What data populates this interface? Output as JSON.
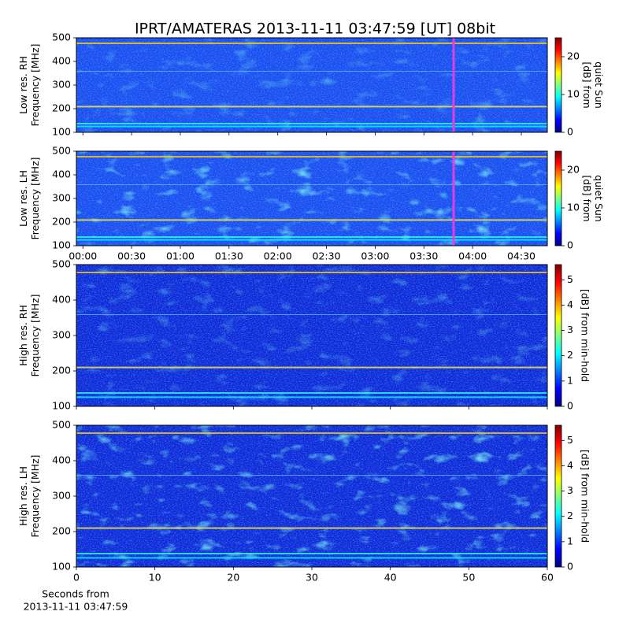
{
  "title": "IPRT/AMATERAS 2013-11-11 03:47:59 [UT]   08bit",
  "chart_data": [
    {
      "type": "heatmap",
      "ylabel": [
        "Low res. RH",
        "Frequency [MHz]"
      ],
      "xlim": [
        -4,
        286
      ],
      "xticks": [
        0,
        30,
        60,
        90,
        120,
        150,
        180,
        210,
        240,
        270
      ],
      "xticklabels": false,
      "ylim": [
        100,
        500
      ],
      "yticks": [
        100,
        200,
        300,
        400,
        500
      ],
      "colorbar_label": [
        "[dB] from",
        "quiet Sun"
      ],
      "clim": [
        0,
        25
      ],
      "cticks": [
        0,
        10,
        20
      ]
    },
    {
      "type": "heatmap",
      "ylabel": [
        "Low res. LH",
        "Frequency [MHz]"
      ],
      "xlim": [
        -4,
        286
      ],
      "xticks": [
        {
          "value": 0,
          "label": "00:00"
        },
        {
          "value": 30,
          "label": "00:30"
        },
        {
          "value": 60,
          "label": "01:00"
        },
        {
          "value": 90,
          "label": "01:30"
        },
        {
          "value": 120,
          "label": "02:00"
        },
        {
          "value": 150,
          "label": "02:30"
        },
        {
          "value": 180,
          "label": "03:00"
        },
        {
          "value": 210,
          "label": "03:30"
        },
        {
          "value": 240,
          "label": "04:00"
        },
        {
          "value": 270,
          "label": "04:30"
        }
      ],
      "xticklabels": true,
      "ylim": [
        100,
        500
      ],
      "yticks": [
        100,
        200,
        300,
        400,
        500
      ],
      "colorbar_label": [
        "[dB] from",
        "quiet Sun"
      ],
      "clim": [
        0,
        25
      ],
      "cticks": [
        0,
        10,
        20
      ]
    },
    {
      "type": "heatmap",
      "ylabel": [
        "High res. RH",
        "Frequency [MHz]"
      ],
      "xlim": [
        0,
        60
      ],
      "xticks": [
        0,
        10,
        20,
        30,
        40,
        50,
        60
      ],
      "xticklabels": false,
      "ylim": [
        100,
        500
      ],
      "yticks": [
        100,
        200,
        300,
        400,
        500
      ],
      "colorbar_label": [
        "[dB] from min-hold"
      ],
      "clim": [
        0,
        5.6
      ],
      "cticks": [
        0,
        1,
        2,
        3,
        4,
        5
      ]
    },
    {
      "type": "heatmap",
      "ylabel": [
        "High res. LH",
        "Frequency [MHz]"
      ],
      "xlim": [
        0,
        60
      ],
      "xticks": [
        0,
        10,
        20,
        30,
        40,
        50,
        60
      ],
      "xticklabels": true,
      "xlabel": [
        "Seconds from",
        "2013-11-11 03:47:59"
      ],
      "ylim": [
        100,
        500
      ],
      "yticks": [
        100,
        200,
        300,
        400,
        500
      ],
      "colorbar_label": [
        "[dB] from min-hold"
      ],
      "clim": [
        0,
        5.6
      ],
      "cticks": [
        0,
        1,
        2,
        3,
        4,
        5
      ]
    }
  ]
}
